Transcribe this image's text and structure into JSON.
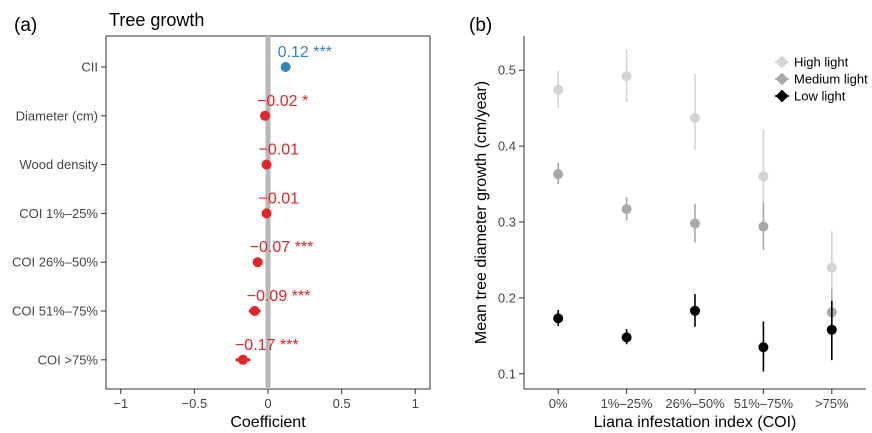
{
  "chart_data": [
    {
      "type": "scatter",
      "panel_label": "(a)",
      "title": "Tree growth",
      "xlabel": "Coefficient",
      "ylabel": "",
      "xlim": [
        -1.1,
        1.1
      ],
      "xticks": [
        "−1",
        "−0.5",
        "0",
        "0.5",
        "1"
      ],
      "xtick_values": [
        -1,
        -0.5,
        0,
        0.5,
        1
      ],
      "categories": [
        "CII",
        "Diameter (cm)",
        "Wood density",
        "COI 1%–25%",
        "COI 26%–50%",
        "COI 51%–75%",
        "COI >75%"
      ],
      "values": [
        0.12,
        -0.02,
        -0.01,
        -0.01,
        -0.07,
        -0.09,
        -0.17
      ],
      "ci_low": [
        0.1,
        -0.04,
        -0.03,
        -0.03,
        -0.1,
        -0.13,
        -0.22
      ],
      "ci_high": [
        0.14,
        0.0,
        0.01,
        0.01,
        -0.04,
        -0.05,
        -0.12
      ],
      "value_labels": [
        "0.12",
        "−0.02",
        "−0.01",
        "−0.01",
        "−0.07",
        "−0.09",
        "−0.17"
      ],
      "significance": [
        "***",
        "*",
        "",
        "",
        "***",
        "***",
        "***"
      ],
      "colors": [
        "#3b82b8",
        "#e0262b",
        "#e0262b",
        "#e0262b",
        "#e0262b",
        "#e0262b",
        "#e0262b"
      ],
      "zero_line_color": "#b8b8b8"
    },
    {
      "type": "scatter",
      "panel_label": "(b)",
      "xlabel": "Liana infestation index (COI)",
      "ylabel": "Mean tree diameter growth  (cm/year)",
      "ylim": [
        0.08,
        0.545
      ],
      "yticks": [
        "0.1",
        "0.2",
        "0.3",
        "0.4",
        "0.5"
      ],
      "ytick_values": [
        0.1,
        0.2,
        0.3,
        0.4,
        0.5
      ],
      "categories": [
        "0%",
        "1%–25%",
        "26%–50%",
        "51%–75%",
        ">75%"
      ],
      "legend_position": "top-right",
      "series": [
        {
          "name": "High light",
          "color": "#d3d3d3",
          "values": [
            0.474,
            0.492,
            0.437,
            0.36,
            0.24
          ],
          "ci_low": [
            0.45,
            0.458,
            0.395,
            0.3,
            0.19
          ],
          "ci_high": [
            0.499,
            0.527,
            0.495,
            0.422,
            0.288
          ]
        },
        {
          "name": "Medium light",
          "color": "#a9a9a9",
          "values": [
            0.363,
            0.317,
            0.298,
            0.294,
            0.181
          ],
          "ci_low": [
            0.35,
            0.302,
            0.273,
            0.263,
            0.168
          ],
          "ci_high": [
            0.378,
            0.333,
            0.324,
            0.325,
            0.212
          ]
        },
        {
          "name": "Low light",
          "color": "#000000",
          "values": [
            0.173,
            0.148,
            0.183,
            0.135,
            0.158
          ],
          "ci_low": [
            0.163,
            0.139,
            0.162,
            0.103,
            0.118
          ],
          "ci_high": [
            0.184,
            0.159,
            0.205,
            0.169,
            0.196
          ]
        }
      ]
    }
  ]
}
